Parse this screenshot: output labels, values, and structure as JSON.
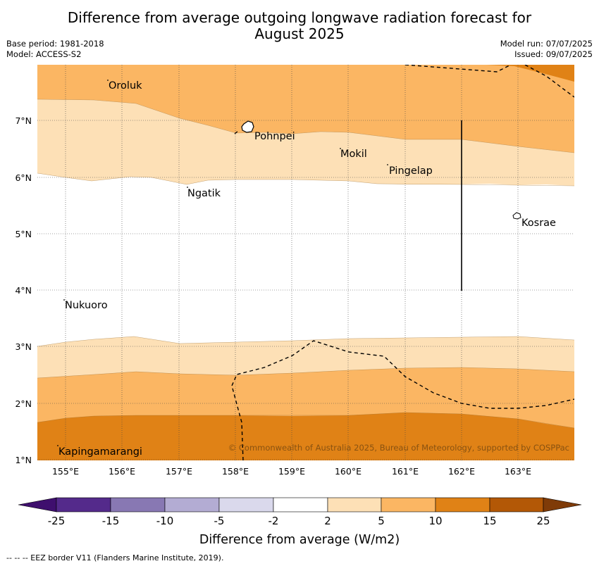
{
  "title_line1": "Difference from average outgoing longwave radiation forecast for",
  "title_line2": "August 2025",
  "base_period": "Base period: 1981-2018",
  "model": "Model: ACCESS-S2",
  "model_run": "Model run: 07/07/2025",
  "issued": "Issued: 09/07/2025",
  "copyright": "© Commonwealth of Australia 2025, Bureau of Meteorology, supported by COSPPac",
  "footer_note": "--  --  -- EEZ border V11 (Flanders Marine Institute, 2019).",
  "map": {
    "lon_range": [
      154.5,
      164.0
    ],
    "lat_range": [
      1.0,
      8.0
    ],
    "lon_ticks": [
      "155°E",
      "156°E",
      "157°E",
      "158°E",
      "159°E",
      "160°E",
      "161°E",
      "162°E",
      "163°E"
    ],
    "lat_ticks": [
      "1°N",
      "2°N",
      "3°N",
      "4°N",
      "5°N",
      "6°N",
      "7°N"
    ],
    "places": [
      {
        "name": "Oroluk",
        "lon": 155.75,
        "lat": 7.65
      },
      {
        "name": "Pohnpei",
        "lon": 158.35,
        "lat": 6.72
      },
      {
        "name": "Mokil",
        "lon": 159.85,
        "lat": 6.4
      },
      {
        "name": "Pingelap",
        "lon": 160.75,
        "lat": 6.12
      },
      {
        "name": "Ngatik",
        "lon": 157.15,
        "lat": 5.72
      },
      {
        "name": "Kosrae",
        "lon": 163.05,
        "lat": 5.2
      },
      {
        "name": "Nukuoro",
        "lon": 154.98,
        "lat": 3.72
      },
      {
        "name": "Kapingamarangi",
        "lon": 154.88,
        "lat": 1.1
      }
    ]
  },
  "legend": {
    "label": "Difference from average (W/m2)",
    "ticks": [
      "-25",
      "-15",
      "-10",
      "-5",
      "-2",
      "2",
      "5",
      "10",
      "15",
      "25"
    ],
    "colors": [
      "#3f0f6e",
      "#542a8b",
      "#8878b3",
      "#b3acd3",
      "#dad9ec",
      "#ffffff",
      "#fde0b6",
      "#fbb663",
      "#e08216",
      "#b35806",
      "#7f3b08"
    ]
  }
}
